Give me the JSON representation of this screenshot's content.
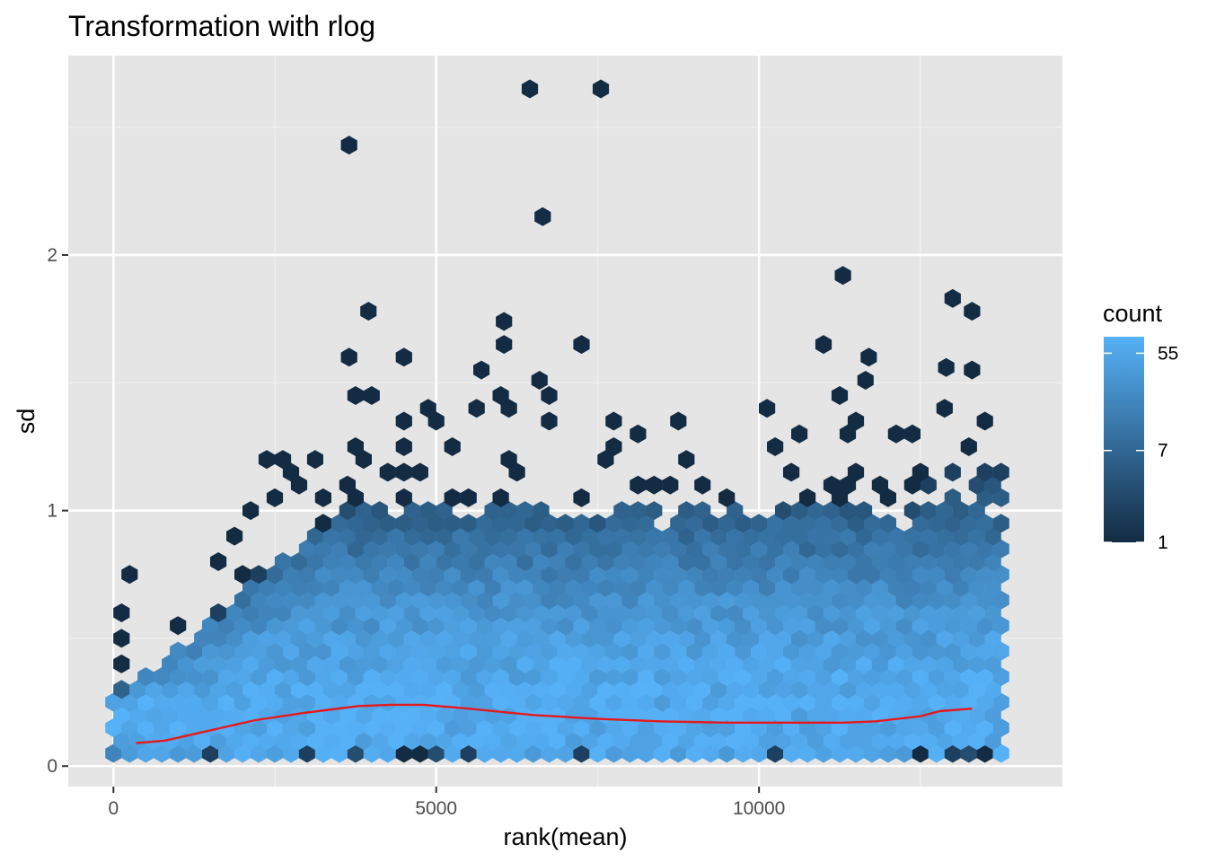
{
  "chart_data": {
    "type": "hexbin",
    "title": "Transformation with rlog",
    "xlabel": "rank(mean)",
    "ylabel": "sd",
    "xlim": [
      -700,
      14700
    ],
    "ylim": [
      -0.08,
      2.78
    ],
    "x_ticks": [
      0,
      5000,
      10000
    ],
    "x_tick_labels": [
      "0",
      "5000",
      "10000"
    ],
    "y_ticks": [
      0,
      1,
      2
    ],
    "y_tick_labels": [
      "0",
      "1",
      "2"
    ],
    "grid": true,
    "background": "#E5E5E5",
    "legend": {
      "title": "count",
      "placement": "right",
      "scale": "log",
      "breaks": [
        1,
        7,
        55
      ],
      "break_labels": [
        "1",
        "7",
        "55"
      ],
      "range": [
        1,
        78
      ],
      "low_color": "#132B43",
      "high_color": "#56B1F7"
    },
    "trend_line": {
      "color": "#E41A1C",
      "x": [
        350,
        800,
        1500,
        2200,
        3000,
        3800,
        4300,
        4800,
        5500,
        6500,
        7500,
        8500,
        9500,
        10500,
        11300,
        11800,
        12500,
        12800,
        13300
      ],
      "y": [
        0.09,
        0.1,
        0.14,
        0.18,
        0.21,
        0.235,
        0.24,
        0.24,
        0.225,
        0.2,
        0.185,
        0.175,
        0.17,
        0.17,
        0.17,
        0.175,
        0.195,
        0.215,
        0.225
      ]
    },
    "sparse_points": {
      "x": [
        6450,
        7550,
        3650,
        6650,
        11300,
        13000,
        3950,
        13300,
        6050,
        7250,
        3650,
        4500,
        5700,
        11700,
        12900,
        13300,
        6050,
        11000,
        11650,
        6600
      ],
      "y": [
        2.65,
        2.65,
        2.43,
        2.15,
        1.92,
        1.83,
        1.78,
        1.78,
        1.74,
        1.65,
        1.6,
        1.6,
        1.55,
        1.6,
        1.56,
        1.55,
        1.65,
        1.65,
        1.51,
        1.51
      ]
    },
    "density_grid": {
      "x_start": 0,
      "x_step": 250,
      "x_end": 13750,
      "y_levels": [
        0.05,
        0.1,
        0.15,
        0.2,
        0.25,
        0.3,
        0.35,
        0.4,
        0.45,
        0.5,
        0.55,
        0.6,
        0.65,
        0.7,
        0.75,
        0.8,
        0.85,
        0.9,
        0.95,
        1.0,
        1.05,
        1.1,
        1.15,
        1.2,
        1.25,
        1.3,
        1.35,
        1.4,
        1.45
      ]
    }
  }
}
